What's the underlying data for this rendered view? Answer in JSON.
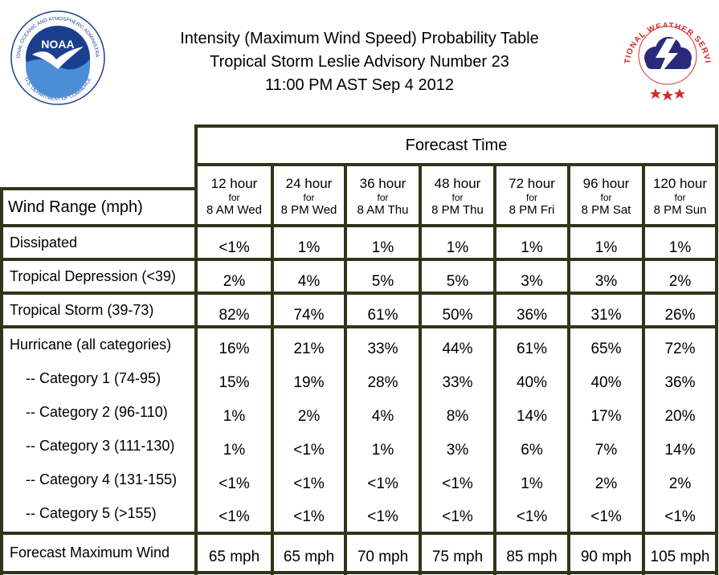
{
  "title": {
    "line1": "Intensity (Maximum Wind Speed) Probability Table",
    "line2": "Tropical Storm Leslie Advisory Number 23",
    "line3": "11:00 PM AST Sep 4 2012"
  },
  "logos": {
    "noaa_center": "NOAA",
    "noaa_ring_top": "NATIONAL OCEANIC AND ATMOSPHERIC ADMINISTRATION",
    "noaa_ring_bottom": "U.S. DEPARTMENT OF COMMERCE",
    "nws_ring": "NATIONAL WEATHER SERVICE"
  },
  "table": {
    "forecast_time_label": "Forecast Time",
    "wind_range_label": "Wind Range (mph)",
    "columns": [
      {
        "hours": "12 hour",
        "for": "for",
        "when": "8 AM Wed"
      },
      {
        "hours": "24 hour",
        "for": "for",
        "when": "8 PM Wed"
      },
      {
        "hours": "36 hour",
        "for": "for",
        "when": "8 AM Thu"
      },
      {
        "hours": "48 hour",
        "for": "for",
        "when": "8 PM Thu"
      },
      {
        "hours": "72 hour",
        "for": "for",
        "when": "8 PM Fri"
      },
      {
        "hours": "96 hour",
        "for": "for",
        "when": "8 PM Sat"
      },
      {
        "hours": "120 hour",
        "for": "for",
        "when": "8 PM Sun"
      }
    ],
    "rows": [
      {
        "label": "Dissipated",
        "values": [
          "<1%",
          "1%",
          "1%",
          "1%",
          "1%",
          "1%",
          "1%"
        ]
      },
      {
        "label": "Tropical Depression (<39)",
        "values": [
          "2%",
          "4%",
          "5%",
          "5%",
          "3%",
          "3%",
          "2%"
        ]
      },
      {
        "label": "Tropical Storm (39-73)",
        "values": [
          "82%",
          "74%",
          "61%",
          "50%",
          "36%",
          "31%",
          "26%"
        ]
      },
      {
        "label": "Hurricane (all categories)",
        "values": [
          "16%",
          "21%",
          "33%",
          "44%",
          "61%",
          "65%",
          "72%"
        ]
      },
      {
        "label": "-- Category 1 (74-95)",
        "values": [
          "15%",
          "19%",
          "28%",
          "33%",
          "40%",
          "40%",
          "36%"
        ]
      },
      {
        "label": "-- Category 2 (96-110)",
        "values": [
          "1%",
          "2%",
          "4%",
          "8%",
          "14%",
          "17%",
          "20%"
        ]
      },
      {
        "label": "-- Category 3 (111-130)",
        "values": [
          "1%",
          "<1%",
          "1%",
          "3%",
          "6%",
          "7%",
          "14%"
        ]
      },
      {
        "label": "-- Category 4 (131-155)",
        "values": [
          "<1%",
          "<1%",
          "<1%",
          "<1%",
          "1%",
          "2%",
          "2%"
        ]
      },
      {
        "label": "-- Category 5 (>155)",
        "values": [
          "<1%",
          "<1%",
          "<1%",
          "<1%",
          "<1%",
          "<1%",
          "<1%"
        ]
      }
    ],
    "max_wind": {
      "label": "Forecast Maximum Wind",
      "values": [
        "65 mph",
        "65 mph",
        "70 mph",
        "75 mph",
        "85 mph",
        "90 mph",
        "105 mph"
      ]
    }
  },
  "colors": {
    "border": "#33331a",
    "noaa_blue": "#1a3f8f",
    "nws_red": "#d42a2a",
    "nws_navy": "#2a2a7a"
  }
}
